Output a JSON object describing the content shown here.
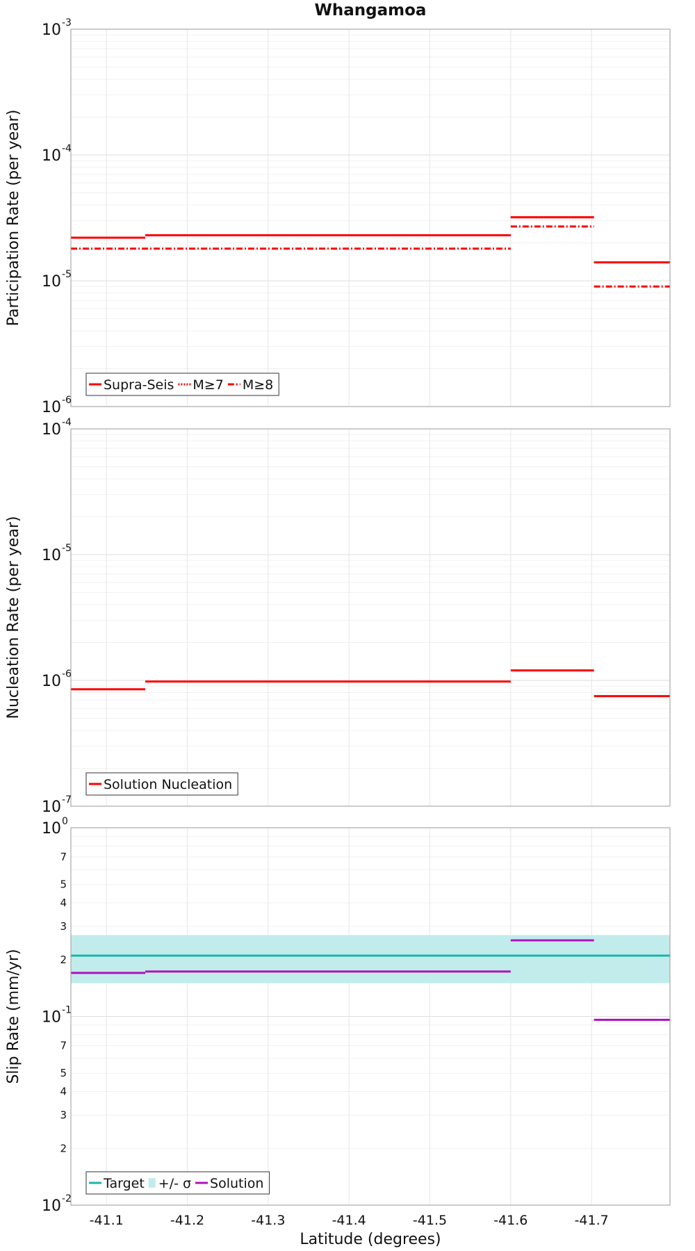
{
  "title": "Whangamoa",
  "xlabel": "Latitude (degrees)",
  "x_ticks": [
    "-41.1",
    "-41.2",
    "-41.3",
    "-41.4",
    "-41.5",
    "-41.6",
    "-41.7"
  ],
  "chart_data": [
    {
      "type": "line",
      "step": true,
      "ylabel": "Participation Rate (per year)",
      "yscale": "log",
      "ylim": [
        1e-06,
        0.001
      ],
      "y_tick_labels": [
        {
          "base": "10",
          "exp": "-6"
        },
        {
          "base": "10",
          "exp": "-5"
        },
        {
          "base": "10",
          "exp": "-4"
        },
        {
          "base": "10",
          "exp": "-3"
        }
      ],
      "xlim": [
        -41.056,
        -41.797
      ],
      "grid": true,
      "legend_position": "bottom-left",
      "series": [
        {
          "name": "Supra-Seis",
          "color": "#ff0000",
          "style": "solid",
          "segments": [
            {
              "x": [
                -41.056,
                -41.148
              ],
              "y": 2.2e-05
            },
            {
              "x": [
                -41.148,
                -41.6
              ],
              "y": 2.3e-05
            },
            {
              "x": [
                -41.6,
                -41.703
              ],
              "y": 3.2e-05
            },
            {
              "x": [
                -41.703,
                -41.797
              ],
              "y": 1.4e-05
            }
          ]
        },
        {
          "name": "M≥7",
          "color": "#ff0000",
          "style": "dotted",
          "segments": [
            {
              "x": [
                -41.056,
                -41.148
              ],
              "y": 2.2e-05
            },
            {
              "x": [
                -41.148,
                -41.6
              ],
              "y": 2.3e-05
            },
            {
              "x": [
                -41.6,
                -41.703
              ],
              "y": 3.2e-05
            },
            {
              "x": [
                -41.703,
                -41.797
              ],
              "y": 1.4e-05
            }
          ]
        },
        {
          "name": "M≥8",
          "color": "#ff0000",
          "style": "dashdot",
          "segments": [
            {
              "x": [
                -41.056,
                -41.6
              ],
              "y": 1.8e-05
            },
            {
              "x": [
                -41.6,
                -41.703
              ],
              "y": 2.7e-05
            },
            {
              "x": [
                -41.703,
                -41.797
              ],
              "y": 9e-06
            }
          ]
        }
      ]
    },
    {
      "type": "line",
      "step": true,
      "ylabel": "Nucleation Rate (per year)",
      "yscale": "log",
      "ylim": [
        1e-07,
        0.0001
      ],
      "y_tick_labels": [
        {
          "base": "10",
          "exp": "-7"
        },
        {
          "base": "10",
          "exp": "-6"
        },
        {
          "base": "10",
          "exp": "-5"
        },
        {
          "base": "10",
          "exp": "-4"
        }
      ],
      "xlim": [
        -41.056,
        -41.797
      ],
      "grid": true,
      "legend_position": "bottom-left",
      "series": [
        {
          "name": "Solution Nucleation",
          "color": "#ff0000",
          "style": "solid",
          "segments": [
            {
              "x": [
                -41.056,
                -41.148
              ],
              "y": 8.5e-07
            },
            {
              "x": [
                -41.148,
                -41.6
              ],
              "y": 9.8e-07
            },
            {
              "x": [
                -41.6,
                -41.703
              ],
              "y": 1.2e-06
            },
            {
              "x": [
                -41.703,
                -41.797
              ],
              "y": 7.5e-07
            }
          ]
        }
      ]
    },
    {
      "type": "line",
      "step": true,
      "ylabel": "Slip Rate (mm/yr)",
      "yscale": "log",
      "ylim": [
        0.01,
        1
      ],
      "y_tick_labels": [
        {
          "base": "10",
          "exp": "-2"
        },
        {
          "base": "10",
          "exp": "-1"
        },
        {
          "base": "10",
          "exp": "0"
        }
      ],
      "y_minor_labels": [
        {
          "value": 0.02,
          "label": "2"
        },
        {
          "value": 0.03,
          "label": "3"
        },
        {
          "value": 0.04,
          "label": "4"
        },
        {
          "value": 0.05,
          "label": "5"
        },
        {
          "value": 0.07,
          "label": "7"
        },
        {
          "value": 0.2,
          "label": "2"
        },
        {
          "value": 0.3,
          "label": "3"
        },
        {
          "value": 0.4,
          "label": "4"
        },
        {
          "value": 0.5,
          "label": "5"
        },
        {
          "value": 0.7,
          "label": "7"
        }
      ],
      "xlim": [
        -41.056,
        -41.797
      ],
      "grid": true,
      "legend_position": "bottom-left",
      "band": {
        "name": "+/- σ",
        "color": "#c2eceb",
        "y_low": 0.15,
        "y_high": 0.27
      },
      "series": [
        {
          "name": "Target",
          "color": "#1ab3ac",
          "style": "solid",
          "segments": [
            {
              "x": [
                -41.056,
                -41.797
              ],
              "y": 0.21
            }
          ]
        },
        {
          "name": "Solution",
          "color": "#b010c0",
          "style": "solid",
          "segments": [
            {
              "x": [
                -41.056,
                -41.148
              ],
              "y": 0.17
            },
            {
              "x": [
                -41.148,
                -41.6
              ],
              "y": 0.173
            },
            {
              "x": [
                -41.6,
                -41.703
              ],
              "y": 0.253
            },
            {
              "x": [
                -41.703,
                -41.797
              ],
              "y": 0.096
            }
          ]
        }
      ],
      "legend_order": [
        "Target",
        "+/- σ",
        "Solution"
      ]
    }
  ]
}
